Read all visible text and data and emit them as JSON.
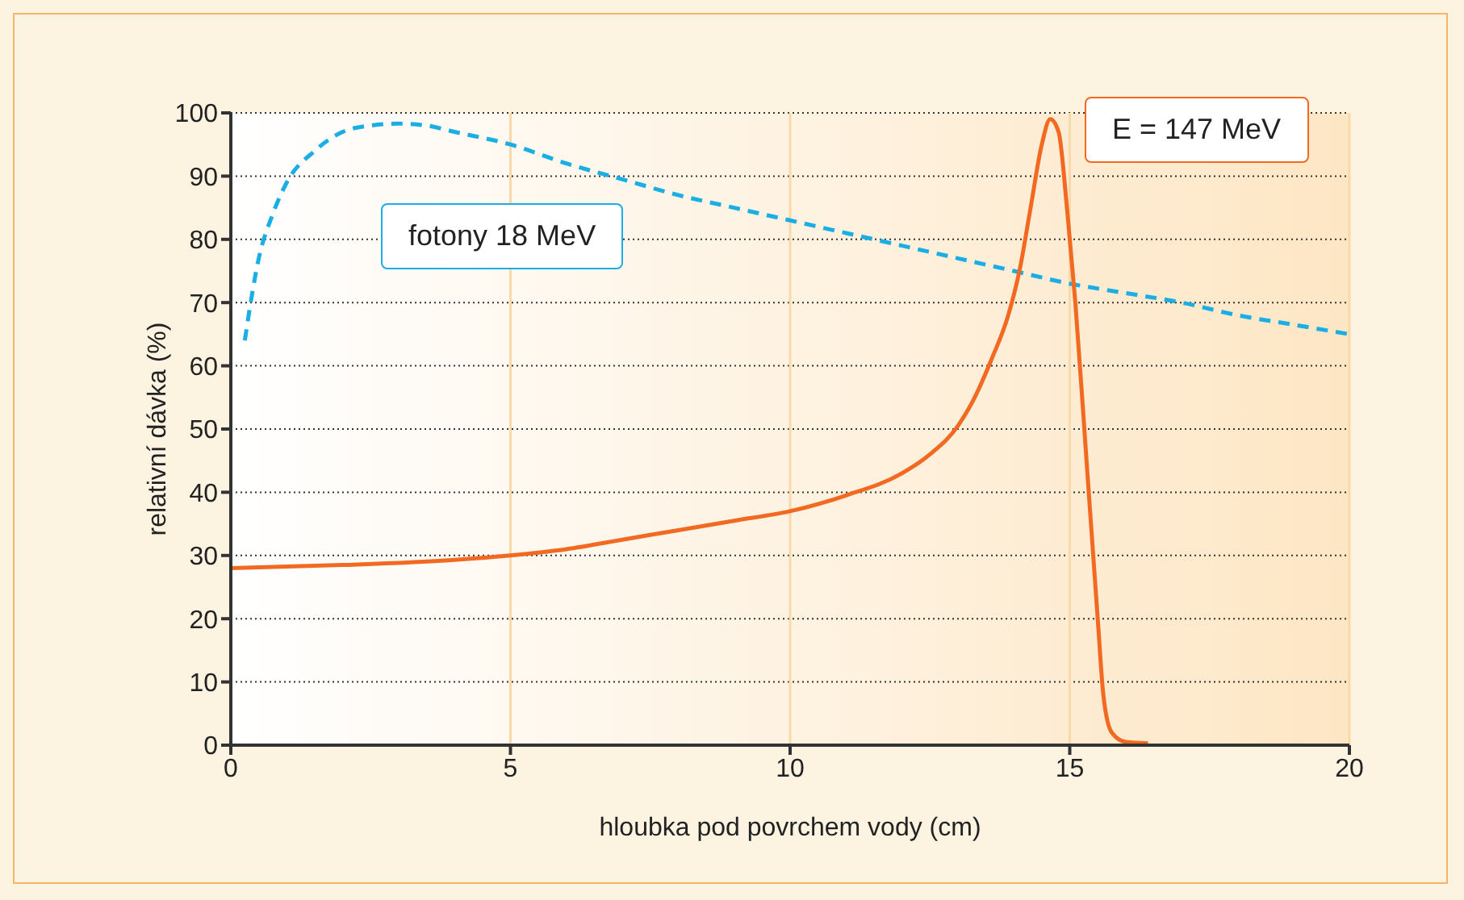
{
  "chart_data": {
    "type": "line",
    "xlabel": "hloubka pod povrchem vody (cm)",
    "ylabel": "relativní dávka (%)",
    "xlim": [
      0,
      20
    ],
    "xticks": [
      0,
      5,
      10,
      15,
      20
    ],
    "ylim": [
      0,
      100
    ],
    "yticks": [
      0,
      10,
      20,
      30,
      40,
      50,
      60,
      70,
      80,
      90,
      100
    ],
    "grid": true,
    "marker": "none",
    "legend": false,
    "series": [
      {
        "name": "fotony 18 MeV",
        "color": "#1aaee5",
        "line_style": "dashed",
        "x": [
          0.25,
          0.5,
          0.75,
          1,
          1.5,
          2,
          2.5,
          3,
          3.5,
          4,
          5,
          6,
          7,
          8,
          9,
          10,
          11,
          12,
          13,
          14,
          15,
          16,
          17,
          18,
          19,
          20
        ],
        "values": [
          64,
          77,
          84,
          89,
          94,
          97,
          98,
          98.3,
          98,
          97,
          95,
          92,
          89.5,
          87,
          85,
          83,
          81,
          79,
          77,
          75,
          73,
          71.5,
          70,
          68,
          66.5,
          65
        ]
      },
      {
        "name": "E = 147 MeV",
        "color": "#f26a21",
        "line_style": "solid",
        "x": [
          0,
          2,
          4,
          5,
          6,
          7,
          8,
          9,
          10,
          11,
          12,
          12.5,
          13,
          13.3,
          13.6,
          13.9,
          14.1,
          14.3,
          14.5,
          14.65,
          14.8,
          14.95,
          15.1,
          15.3,
          15.5,
          15.6,
          15.75,
          16,
          16.4
        ],
        "values": [
          28,
          28.5,
          29.3,
          30,
          31,
          32.5,
          34,
          35.5,
          37,
          39.5,
          43,
          46,
          50.5,
          55,
          61,
          68,
          75,
          85,
          95,
          99,
          97,
          85,
          70,
          45,
          20,
          8,
          2,
          0.5,
          0.3
        ]
      }
    ]
  }
}
